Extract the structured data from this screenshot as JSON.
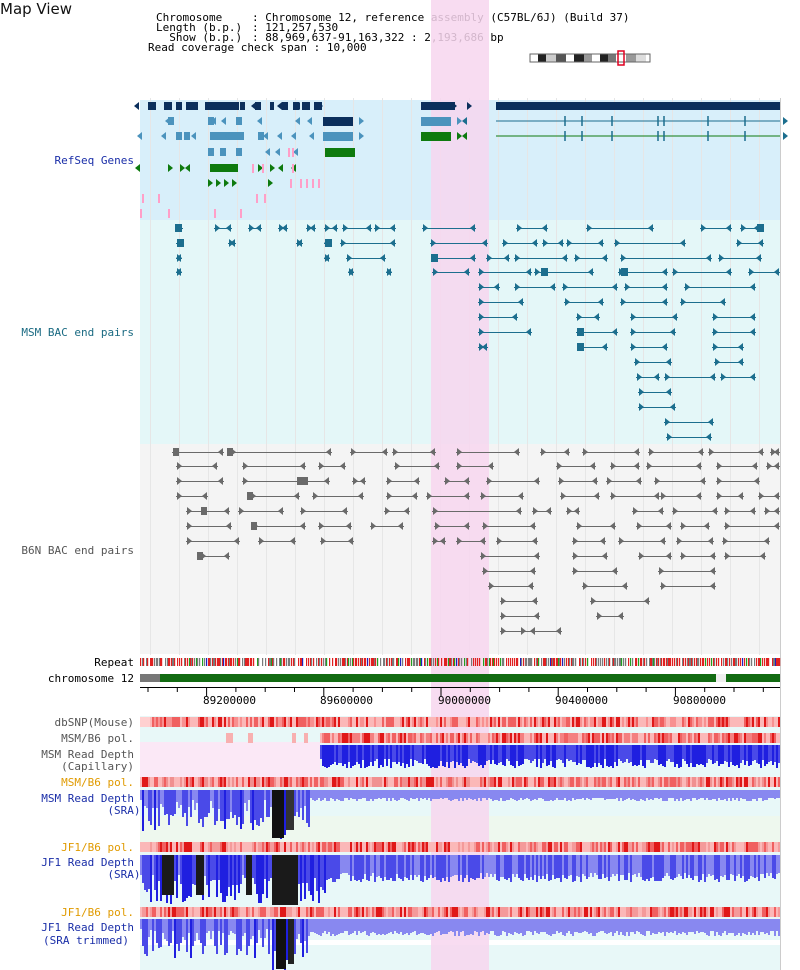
{
  "title": "Map View",
  "header": {
    "rows": [
      {
        "label": "Chromosome    ",
        "value": "Chromosome 12, reference assembly (C57BL/6J) (Build 37)"
      },
      {
        "label": "Length (b.p.) ",
        "value": "121,257,530"
      },
      {
        "label": "  Show (b.p.) ",
        "value": "88,969,637-91,163,322 : 2,193,686 bp"
      }
    ],
    "coverage_label": "Read coverage check span",
    "coverage_value": "10,000"
  },
  "tracks": {
    "refseq": "RefSeq Genes",
    "msm_bac": "MSM BAC end pairs",
    "b6n_bac": "B6N BAC end pairs",
    "repeat": "Repeat",
    "chromosome": "chromosome 12",
    "dbsnp": "dbSNP(Mouse)",
    "msm_b6_pol_1": "MSM/B6 pol.",
    "msm_depth_cap_1": "MSM Read Depth",
    "msm_depth_cap_2": "(Capillary)",
    "msm_b6_pol_2": "MSM/B6 pol.",
    "msm_depth_sra_1": "MSM Read Depth",
    "msm_depth_sra_2": "(SRA)",
    "jf1_b6_pol_1": "JF1/B6 pol.",
    "jf1_depth_sra_1": "JF1 Read Depth",
    "jf1_depth_sra_2": "(SRA)",
    "jf1_b6_pol_2": "JF1/B6 pol.",
    "jf1_depth_trim_1": "JF1 Read Depth",
    "jf1_depth_trim_2": "(SRA trimmed)"
  },
  "axis": {
    "ticks": [
      "89200000",
      "89600000",
      "90000000",
      "90400000",
      "90800000"
    ]
  },
  "colors": {
    "navy": "#0b2f5c",
    "teal": "#1c6e8e",
    "gene_blue": "#4b93bd",
    "gene_green": "#0e7a0e",
    "pink": "#ff9fc8",
    "highlight": "#f7d6ef",
    "gray": "#666666",
    "depth_blue": "#1f1fe0",
    "depth_light": "#8888f0",
    "label_blue": "#1a2ea8",
    "label_teal": "#1a6a82",
    "label_gray": "#555555",
    "label_orange": "#e09a00"
  }
}
